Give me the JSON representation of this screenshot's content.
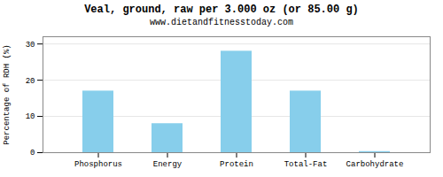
{
  "chart_data": {
    "type": "bar",
    "title": "Veal, ground, raw per 3.000 oz (or 85.00 g)",
    "subtitle": "www.dietandfitnesstoday.com",
    "categories": [
      "Phosphorus",
      "Energy",
      "Protein",
      "Total-Fat",
      "Carbohydrate"
    ],
    "values": [
      17,
      8,
      28,
      17,
      0.3
    ],
    "color": "#87CEEB",
    "ylabel": "Percentage of RDH (%)",
    "ylim": [
      0,
      32
    ],
    "yticks": [
      0,
      10,
      20,
      30
    ],
    "grid": true
  }
}
